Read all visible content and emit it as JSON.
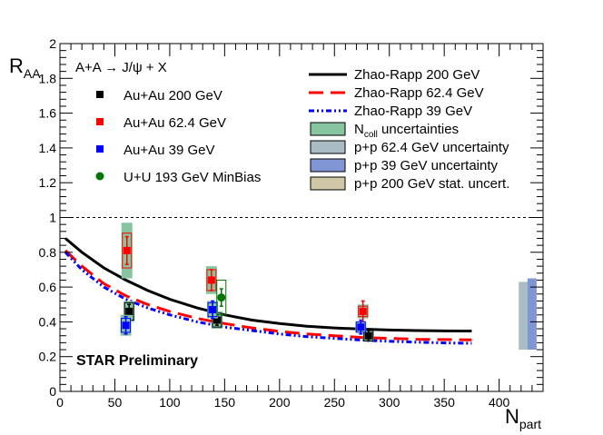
{
  "chart_data": {
    "type": "scatter",
    "title": "",
    "xlabel": "N",
    "xlabel_sub": "part",
    "ylabel": "R",
    "ylabel_sub": "AA",
    "xlim": [
      0,
      440
    ],
    "ylim": [
      0,
      2
    ],
    "x_ticks": [
      0,
      50,
      100,
      150,
      200,
      250,
      300,
      350,
      400
    ],
    "y_ticks": [
      0,
      0.2,
      0.4,
      0.6,
      0.8,
      1,
      1.2,
      1.4,
      1.6,
      1.8,
      2
    ],
    "y_tick_labels": [
      "0",
      "0.2",
      "0.4",
      "0.6",
      "0.8",
      "1",
      "1.2",
      "1.4",
      "1.6",
      "1.8",
      "2"
    ],
    "reference_line": 1,
    "reaction_label": "A+A → J/ψ + X",
    "preliminary_label": "STAR Preliminary",
    "series": [
      {
        "name": "Au+Au 200 GeV",
        "marker": "square",
        "color": "#000000",
        "points": [
          {
            "x": 63,
            "y": 0.46,
            "err": 0.04,
            "sys": 0.05,
            "ncoll": 0.06
          },
          {
            "x": 143,
            "y": 0.41,
            "err": 0.03,
            "sys": 0.04,
            "ncoll": 0.05
          },
          {
            "x": 281,
            "y": 0.32,
            "err": 0.03,
            "sys": 0.03,
            "ncoll": 0.03
          }
        ]
      },
      {
        "name": "Au+Au 62.4 GeV",
        "marker": "square",
        "color": "#ff0000",
        "points": [
          {
            "x": 61,
            "y": 0.81,
            "err": 0.08,
            "sys": 0.1,
            "ncoll": 0.16
          },
          {
            "x": 138,
            "y": 0.64,
            "err": 0.06,
            "sys": 0.06,
            "ncoll": 0.08
          },
          {
            "x": 276,
            "y": 0.46,
            "err": 0.06,
            "sys": 0.03,
            "ncoll": 0.04
          }
        ]
      },
      {
        "name": "Au+Au 39 GeV",
        "marker": "square",
        "color": "#0000ff",
        "points": [
          {
            "x": 60,
            "y": 0.38,
            "err": 0.05,
            "sys": 0.04,
            "ncoll": 0.06
          },
          {
            "x": 139,
            "y": 0.47,
            "err": 0.05,
            "sys": 0.04,
            "ncoll": 0.05
          },
          {
            "x": 274,
            "y": 0.37,
            "err": 0.04,
            "sys": 0.03,
            "ncoll": 0.03
          }
        ]
      },
      {
        "name": "U+U 193 GeV MinBias",
        "marker": "circle",
        "color": "#007700",
        "points": [
          {
            "x": 147,
            "y": 0.54,
            "err": 0.05,
            "sys": 0.1,
            "ncoll": 0.0
          }
        ]
      }
    ],
    "curves": [
      {
        "name": "Zhao-Rapp 200 GeV",
        "color": "#000000",
        "dash": "",
        "x": [
          5,
          20,
          40,
          60,
          80,
          100,
          125,
          150,
          175,
          200,
          225,
          250,
          275,
          300,
          325,
          350,
          375
        ],
        "y": [
          0.88,
          0.8,
          0.71,
          0.64,
          0.58,
          0.53,
          0.48,
          0.44,
          0.41,
          0.39,
          0.375,
          0.365,
          0.358,
          0.353,
          0.35,
          0.348,
          0.347
        ]
      },
      {
        "name": "Zhao-Rapp 62.4 GeV",
        "color": "#ff0000",
        "dash": "16,8",
        "x": [
          5,
          20,
          40,
          60,
          80,
          100,
          125,
          150,
          175,
          200,
          225,
          250,
          275,
          300,
          325,
          350,
          375
        ],
        "y": [
          0.81,
          0.72,
          0.62,
          0.55,
          0.5,
          0.46,
          0.42,
          0.39,
          0.365,
          0.345,
          0.33,
          0.32,
          0.31,
          0.305,
          0.3,
          0.298,
          0.296
        ]
      },
      {
        "name": "Zhao-Rapp 39 GeV",
        "color": "#0000ff",
        "dash": "6,3,2,3,2,3",
        "x": [
          5,
          20,
          40,
          60,
          80,
          100,
          125,
          150,
          175,
          200,
          225,
          250,
          275,
          300,
          325,
          350,
          375
        ],
        "y": [
          0.8,
          0.7,
          0.6,
          0.53,
          0.48,
          0.44,
          0.4,
          0.37,
          0.35,
          0.33,
          0.315,
          0.305,
          0.295,
          0.288,
          0.283,
          0.279,
          0.277
        ]
      }
    ],
    "uncertainty_bands": [
      {
        "name": "p+p 62.4 GeV uncertainty",
        "color": "#a9bcc4",
        "x_center": 422,
        "y_low": 0.24,
        "y_high": 0.63
      },
      {
        "name": "p+p 39 GeV uncertainty",
        "color": "#7f95d4",
        "x_center": 430,
        "y_low": 0.24,
        "y_high": 0.65
      }
    ],
    "box_legend": [
      {
        "name": "N",
        "sub": "coll",
        "suffix": " uncertainties",
        "color": "#86c59f"
      },
      {
        "name": "p+p 62.4 GeV uncertainty",
        "sub": "",
        "suffix": "",
        "color": "#a9bcc4"
      },
      {
        "name": "p+p 39 GeV uncertainty",
        "sub": "",
        "suffix": "",
        "color": "#7f95d4"
      },
      {
        "name": "p+p 200 GeV stat. uncert.",
        "sub": "",
        "suffix": "",
        "color": "#cfc7a5"
      }
    ],
    "ncoll_color": "#86c59f"
  }
}
